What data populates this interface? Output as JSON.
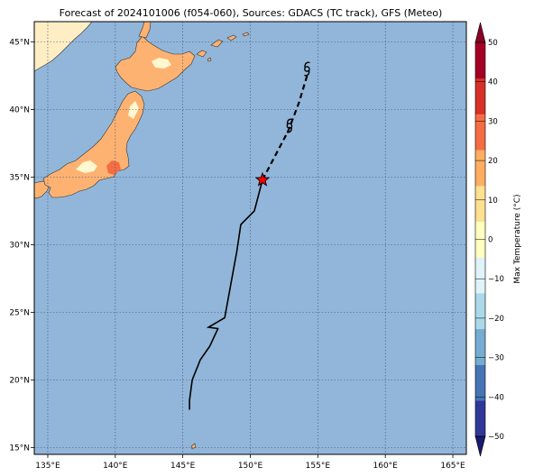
{
  "title": "Forecast of 2024101006 (f054-060), Sources: GDACS (TC track), GFS (Meteo)",
  "map": {
    "lon_range": [
      134,
      166
    ],
    "lat_range": [
      14.5,
      46.5
    ],
    "lon_ticks": [
      "135°E",
      "140°E",
      "145°E",
      "150°E",
      "155°E",
      "160°E",
      "165°E"
    ],
    "lat_ticks": [
      "15°N",
      "20°N",
      "25°N",
      "30°N",
      "35°N",
      "40°N",
      "45°N"
    ],
    "lon_tick_values": [
      135,
      140,
      145,
      150,
      155,
      160,
      165
    ],
    "lat_tick_values": [
      15,
      20,
      25,
      30,
      35,
      40,
      45
    ],
    "ocean_color": "#92b6d9",
    "gridlines": "dotted"
  },
  "track": {
    "observed": [
      [
        145.5,
        17.8
      ],
      [
        145.5,
        18.5
      ],
      [
        145.7,
        20.0
      ],
      [
        146.3,
        21.5
      ],
      [
        147.0,
        22.5
      ],
      [
        147.6,
        23.8
      ],
      [
        146.9,
        23.9
      ],
      [
        148.1,
        24.6
      ],
      [
        149.0,
        29.5
      ],
      [
        149.3,
        31.5
      ],
      [
        150.3,
        32.5
      ],
      [
        150.9,
        34.8
      ]
    ],
    "forecast": [
      [
        150.9,
        34.8
      ],
      [
        151.8,
        36.5
      ],
      [
        152.8,
        38.4
      ],
      [
        153.6,
        40.5
      ],
      [
        154.2,
        42.5
      ]
    ],
    "forecast_style": "dashed",
    "current_position": [
      150.9,
      34.8
    ],
    "current_marker": "red-star",
    "cyclone_symbols": [
      {
        "lon": 152.9,
        "lat": 38.8,
        "icon": "typhoon-symbol-icon"
      },
      {
        "lon": 154.2,
        "lat": 43.0,
        "icon": "typhoon-symbol-icon"
      }
    ]
  },
  "colorbar": {
    "label": "Max Temperature (°C)",
    "ticks": [
      "50",
      "40",
      "30",
      "20",
      "10",
      "0",
      "−10",
      "−20",
      "−30",
      "−40",
      "−50"
    ],
    "tick_values": [
      50,
      40,
      30,
      20,
      10,
      0,
      -10,
      -20,
      -30,
      -40,
      -50
    ],
    "levels": [
      -50,
      -40,
      -30,
      -20,
      -10,
      0,
      10,
      20,
      30,
      40,
      50
    ],
    "colors": [
      "#303798",
      "#4575b4",
      "#74add1",
      "#abd9e9",
      "#e0f3f8",
      "#ffffbf",
      "#fee090",
      "#fdae61",
      "#f46d43",
      "#d73027",
      "#a50026"
    ],
    "under_color": "#1a1a6e",
    "over_color": "#8b0026"
  },
  "land_colors": {
    "main": "#fdb271",
    "cool": "#fff7cf",
    "warm": "#f46d43",
    "continent": "#ffeec4"
  }
}
